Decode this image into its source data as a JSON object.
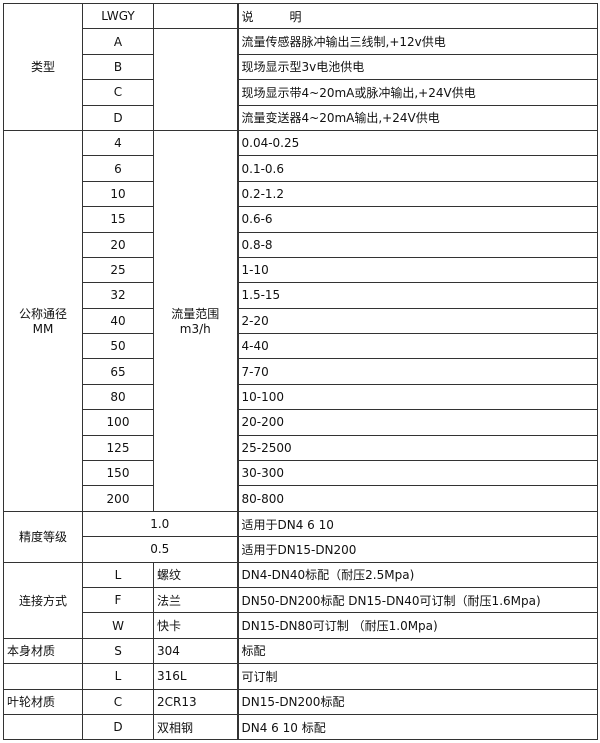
{
  "header": {
    "code": "LWGY",
    "desc_label": "说　　　明"
  },
  "type": {
    "label": "类型",
    "items": [
      {
        "code": "A",
        "desc": "流量传感器脉冲输出三线制,+12v供电"
      },
      {
        "code": "B",
        "desc": "现场显示型3v电池供电"
      },
      {
        "code": "C",
        "desc": "现场显示带4~20mA或脉冲输出,+24V供电"
      },
      {
        "code": "D",
        "desc": "流量变送器4~20mA输出,+24V供电"
      }
    ]
  },
  "diameter": {
    "label": "公称通径",
    "unit": "MM",
    "range_label": "流量范围",
    "range_unit": "m3/h",
    "items": [
      {
        "dn": "4",
        "range": "0.04-0.25"
      },
      {
        "dn": "6",
        "range": "0.1-0.6"
      },
      {
        "dn": "10",
        "range": "0.2-1.2"
      },
      {
        "dn": "15",
        "range": "0.6-6"
      },
      {
        "dn": "20",
        "range": "0.8-8"
      },
      {
        "dn": "25",
        "range": "1-10"
      },
      {
        "dn": "32",
        "range": "1.5-15"
      },
      {
        "dn": "40",
        "range": "2-20"
      },
      {
        "dn": "50",
        "range": "4-40"
      },
      {
        "dn": "65",
        "range": "7-70"
      },
      {
        "dn": "80",
        "range": "10-100"
      },
      {
        "dn": "100",
        "range": "20-200"
      },
      {
        "dn": "125",
        "range": "25-2500"
      },
      {
        "dn": "150",
        "range": "30-300"
      },
      {
        "dn": "200",
        "range": "80-800"
      }
    ]
  },
  "accuracy": {
    "label": "精度等级",
    "items": [
      {
        "grade": "1.0",
        "desc": "适用于DN4  6  10"
      },
      {
        "grade": "0.5",
        "desc": "适用于DN15-DN200"
      }
    ]
  },
  "connection": {
    "label": "连接方式",
    "items": [
      {
        "code": "L",
        "name": "螺纹",
        "desc": "DN4-DN40标配（耐压2.5Mpa)"
      },
      {
        "code": "F",
        "name": "法兰",
        "desc": "DN50-DN200标配 DN15-DN40可订制（耐压1.6Mpa)"
      },
      {
        "code": "W",
        "name": "快卡",
        "desc": "DN15-DN80可订制 （耐压1.0Mpa)"
      }
    ]
  },
  "body_material": {
    "label": "本身材质",
    "items": [
      {
        "code": "S",
        "name": "304",
        "desc": "标配"
      },
      {
        "code": "L",
        "name": "316L",
        "desc": "可订制"
      }
    ]
  },
  "impeller_material": {
    "label": "叶轮材质",
    "items": [
      {
        "code": "C",
        "name": "2CR13",
        "desc": "DN15-DN200标配"
      },
      {
        "code": "D",
        "name": "双相钢",
        "desc": "DN4 6 10 标配"
      }
    ]
  }
}
